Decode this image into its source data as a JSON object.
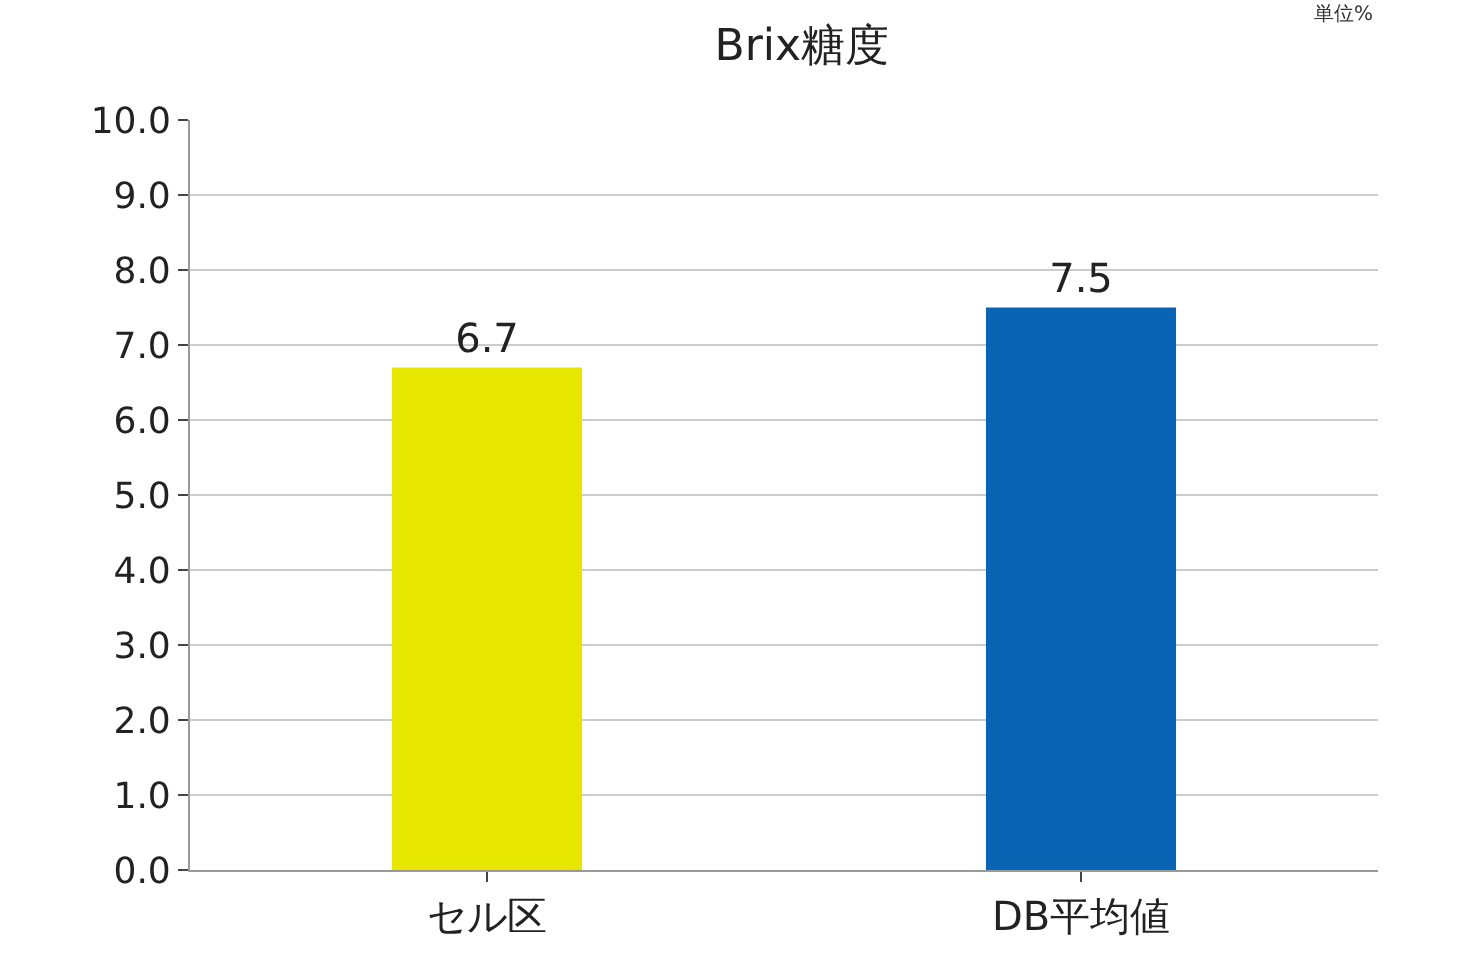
{
  "chart_data": {
    "type": "bar",
    "title": "Brix糖度",
    "categories": [
      "セル区",
      "DB平均値"
    ],
    "values": [
      6.7,
      7.5
    ],
    "colors": [
      "#e6e600",
      "#0a64b4"
    ],
    "ylim": [
      0,
      10
    ],
    "yticks": [
      {
        "value": 0,
        "label": "0.0"
      },
      {
        "value": 1,
        "label": "1.0"
      },
      {
        "value": 2,
        "label": "2.0"
      },
      {
        "value": 3,
        "label": "3.0"
      },
      {
        "value": 4,
        "label": "4.0"
      },
      {
        "value": 5,
        "label": "5.0"
      },
      {
        "value": 6,
        "label": "6.0"
      },
      {
        "value": 7,
        "label": "7.0"
      },
      {
        "value": 8,
        "label": "8.0"
      },
      {
        "value": 9,
        "label": "9.0"
      },
      {
        "value": 10,
        "label": "10.0"
      }
    ],
    "grid": "y",
    "data_labels": true,
    "annotations": [
      "単位%"
    ]
  }
}
